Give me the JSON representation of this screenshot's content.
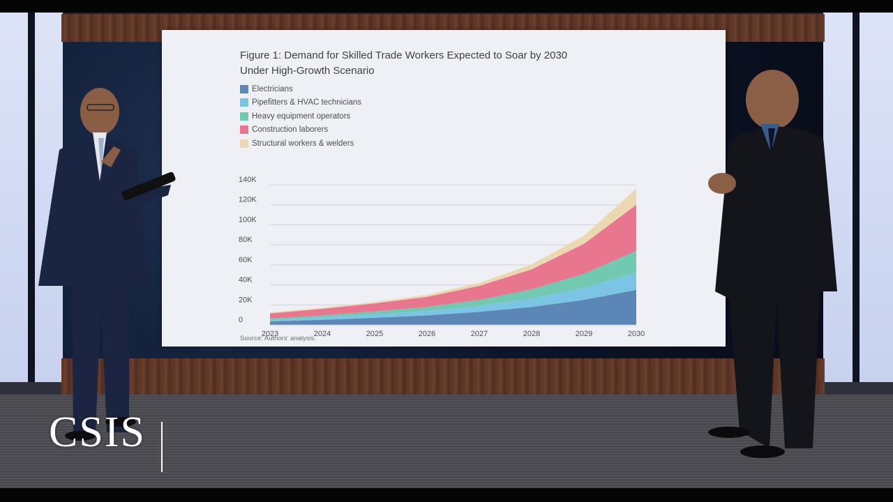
{
  "chart_data": {
    "type": "area",
    "stacked": true,
    "title_line1": "Figure 1: Demand for Skilled Trade Workers Expected to Soar by 2030",
    "title_line2": "Under High-Growth Scenario",
    "source": "Source: Authors' analysis.",
    "legend_position": "top-left",
    "grid": true,
    "x": [
      "2023",
      "2024",
      "2025",
      "2026",
      "2027",
      "2028",
      "2029",
      "2030"
    ],
    "ylim": [
      0,
      140000
    ],
    "y_ticks": [
      "0",
      "20K",
      "40K",
      "60K",
      "80K",
      "100K",
      "120K",
      "140K"
    ],
    "series": [
      {
        "name": "Electricians",
        "color": "#5b86b5",
        "values": [
          3500,
          5000,
          7000,
          9500,
          13000,
          18000,
          25000,
          35000
        ]
      },
      {
        "name": "Pipefitters & HVAC technicians",
        "color": "#7bc4e3",
        "values": [
          1500,
          2500,
          3500,
          4500,
          6000,
          8500,
          12000,
          17000
        ]
      },
      {
        "name": "Heavy equipment operators",
        "color": "#72c9b2",
        "values": [
          1500,
          2000,
          3000,
          4000,
          6000,
          9000,
          14000,
          22000
        ]
      },
      {
        "name": "Construction laborers",
        "color": "#e8768f",
        "values": [
          5000,
          6500,
          8000,
          10000,
          14000,
          20000,
          30000,
          46000
        ]
      },
      {
        "name": "Structural workers & welders",
        "color": "#ecd8b0",
        "values": [
          1000,
          1200,
          1500,
          2000,
          3000,
          5000,
          8000,
          16000
        ]
      }
    ]
  },
  "broadcast": {
    "logo_text": "CSIS"
  },
  "scene": {
    "presenter_left": "presenter-with-tablet",
    "presenter_right": "presenter-hands-clasped"
  }
}
